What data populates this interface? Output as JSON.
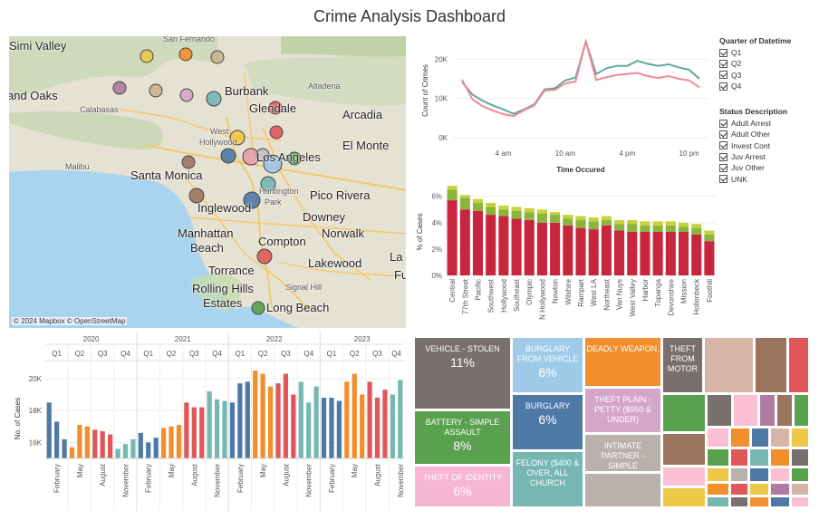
{
  "title": "Crime Analysis Dashboard",
  "map": {
    "credit": "© 2024 Mapbox © OpenStreetMap",
    "places": [
      {
        "name": "Simi Valley",
        "size": "lg"
      },
      {
        "name": "San Fernando",
        "size": "sm"
      },
      {
        "name": "and Oaks",
        "size": "lg"
      },
      {
        "name": "Burbank",
        "size": "lg"
      },
      {
        "name": "Altadena",
        "size": "sm"
      },
      {
        "name": "Calabasas",
        "size": "sm"
      },
      {
        "name": "Glendale",
        "size": "lg"
      },
      {
        "name": "Arcadia",
        "size": "lg"
      },
      {
        "name": "West",
        "size": "sm"
      },
      {
        "name": "Hollywood",
        "size": "sm"
      },
      {
        "name": "El Monte",
        "size": "lg"
      },
      {
        "name": "Los Angeles",
        "size": "lg"
      },
      {
        "name": "Malibu",
        "size": "sm"
      },
      {
        "name": "Santa Monica",
        "size": "lg"
      },
      {
        "name": "Huntington",
        "size": "sm"
      },
      {
        "name": "Park",
        "size": "sm"
      },
      {
        "name": "Pico Rivera",
        "size": "lg"
      },
      {
        "name": "Inglewood",
        "size": "lg"
      },
      {
        "name": "Downey",
        "size": "lg"
      },
      {
        "name": "Manhattan",
        "size": "lg"
      },
      {
        "name": "Beach",
        "size": "lg"
      },
      {
        "name": "Compton",
        "size": "lg"
      },
      {
        "name": "Norwalk",
        "size": "lg"
      },
      {
        "name": "La",
        "size": "lg"
      },
      {
        "name": "Lakewood",
        "size": "lg"
      },
      {
        "name": "Torrance",
        "size": "lg"
      },
      {
        "name": "Fu",
        "size": "lg"
      },
      {
        "name": "Signal Hill",
        "size": "sm"
      },
      {
        "name": "Rolling Hills",
        "size": "lg"
      },
      {
        "name": "Estates",
        "size": "lg"
      },
      {
        "name": "Long Beach",
        "size": "lg"
      }
    ],
    "marker_colors": [
      "#e8a0a8",
      "#d7b4d8",
      "#bfbfbf",
      "#9dc3e6",
      "#4e79a7",
      "#76b7b2",
      "#59a14f",
      "#edc948",
      "#b07aa1",
      "#9c755f",
      "#e15759",
      "#f28e2b",
      "#d4a5c9",
      "#c9b28f"
    ]
  },
  "legend": {
    "quarter_title": "Quarter of Datetime",
    "quarters": [
      "Q1",
      "Q2",
      "Q3",
      "Q4"
    ],
    "status_title": "Status Description",
    "statuses": [
      "Adult Arrest",
      "Adult Other",
      "Invest Cont",
      "Juv Arrest",
      "Juv Other",
      "UNK"
    ]
  },
  "chart_data": [
    {
      "type": "line",
      "xlabel": "Time Occured",
      "ylabel": "Count of Crimes",
      "x": [
        0,
        1,
        2,
        3,
        4,
        5,
        6,
        7,
        8,
        9,
        10,
        11,
        12,
        13,
        14,
        15,
        16,
        17,
        18,
        19,
        20,
        21,
        22,
        23
      ],
      "xticks": [
        {
          "label": "4 am",
          "at": 4
        },
        {
          "label": "10 am",
          "at": 10
        },
        {
          "label": "4 pm",
          "at": 16
        },
        {
          "label": "10 pm",
          "at": 22
        }
      ],
      "yticks": [
        {
          "label": "0K",
          "at": 0
        },
        {
          "label": "10K",
          "at": 10000
        },
        {
          "label": "20K",
          "at": 20000
        }
      ],
      "ylim": [
        0,
        24000
      ],
      "series": [
        {
          "color": "#5fa8a0",
          "values": [
            14200,
            11000,
            9400,
            8200,
            7200,
            6100,
            7200,
            8500,
            12300,
            12600,
            14600,
            15300,
            24500,
            16200,
            17700,
            18300,
            18300,
            19600,
            18800,
            18300,
            18700,
            17900,
            17300,
            15000
          ]
        },
        {
          "color": "#f08a96",
          "values": [
            14800,
            9800,
            8000,
            6900,
            6000,
            5500,
            7000,
            8200,
            12000,
            12200,
            13800,
            14300,
            24500,
            14700,
            15400,
            16000,
            16200,
            16500,
            15700,
            15200,
            15700,
            15000,
            14600,
            12800
          ]
        }
      ]
    },
    {
      "type": "bar",
      "stacked": true,
      "ylabel": "% of Cases",
      "categories": [
        "Central",
        "77th Street",
        "Pacific",
        "Southwest",
        "Hollywood",
        "Southeast",
        "Olympic",
        "N Hollywood",
        "Newton",
        "Wilshire",
        "Rampart",
        "West LA",
        "Northeast",
        "Van Nuys",
        "West Valley",
        "Harbor",
        "Topanga",
        "Devonshire",
        "Mission",
        "Hollenbeck",
        "Foothill"
      ],
      "yticks": [
        {
          "label": "0%",
          "at": 0
        },
        {
          "label": "2%",
          "at": 2
        },
        {
          "label": "4%",
          "at": 4
        },
        {
          "label": "6%",
          "at": 6
        }
      ],
      "ylim": [
        0,
        6.6
      ],
      "series": [
        {
          "color": "#c8253e",
          "values": [
            5.7,
            5.0,
            4.9,
            4.6,
            4.5,
            4.3,
            4.2,
            4.0,
            4.0,
            3.8,
            3.6,
            3.5,
            3.8,
            3.4,
            3.3,
            3.3,
            3.3,
            3.3,
            3.3,
            3.1,
            2.6
          ]
        },
        {
          "color": "#8ab43c",
          "values": [
            0.8,
            0.9,
            0.6,
            0.6,
            0.5,
            0.6,
            0.6,
            0.7,
            0.6,
            0.5,
            0.6,
            0.6,
            0.4,
            0.5,
            0.6,
            0.5,
            0.5,
            0.5,
            0.4,
            0.5,
            0.5
          ]
        },
        {
          "color": "#c6d23a",
          "values": [
            0.3,
            0.2,
            0.3,
            0.3,
            0.3,
            0.3,
            0.3,
            0.3,
            0.2,
            0.3,
            0.3,
            0.3,
            0.3,
            0.3,
            0.3,
            0.3,
            0.3,
            0.3,
            0.3,
            0.3,
            0.3
          ]
        }
      ]
    },
    {
      "type": "bar",
      "ylabel": "No. of Cases",
      "years": [
        "2020",
        "2021",
        "2022",
        "2023"
      ],
      "quarters": [
        "Q1",
        "Q2",
        "Q3",
        "Q4"
      ],
      "quarter_colors": [
        "#4e79a7",
        "#f28e2b",
        "#e15759",
        "#76b7b2"
      ],
      "month_labels": [
        "February",
        "May",
        "August",
        "November"
      ],
      "yticks": [
        {
          "label": "16K",
          "at": 16000
        },
        {
          "label": "18K",
          "at": 18000
        },
        {
          "label": "20K",
          "at": 20000
        }
      ],
      "ylim": [
        15000,
        20900
      ],
      "values": [
        18500,
        17300,
        16200,
        15700,
        17100,
        17000,
        16800,
        16700,
        16500,
        15600,
        15900,
        16200,
        16600,
        16000,
        16300,
        16900,
        17000,
        17100,
        18500,
        18200,
        18200,
        19200,
        18700,
        18600,
        18500,
        19700,
        19800,
        20500,
        20300,
        19500,
        19700,
        20300,
        19000,
        19800,
        18500,
        19500,
        18800,
        18800,
        18600,
        19800,
        20300,
        19000,
        19800,
        18800,
        19300,
        19000,
        19900
      ]
    }
  ],
  "treemap": [
    {
      "label": "VEHICLE - STOLEN",
      "pct": "11%",
      "color": "#79706e"
    },
    {
      "label": "BURGLARY FROM VEHICLE",
      "pct": "6%",
      "color": "#a0cbe8"
    },
    {
      "label": "DEADLY WEAPON,",
      "pct": "",
      "color": "#f28e2b"
    },
    {
      "label": "THEFT FROM MOTOR",
      "pct": "",
      "color": "#79706e"
    },
    {
      "label": "BATTERY - SIMPLE ASSAULT",
      "pct": "8%",
      "color": "#59a14f"
    },
    {
      "label": "BURGLARY",
      "pct": "6%",
      "color": "#4e79a7"
    },
    {
      "label": "THEFT PLAIN - PETTY ($950 & UNDER)",
      "pct": "",
      "color": "#d4a6c8"
    },
    {
      "label": "INTIMATE PARTNER - SIMPLE",
      "pct": "",
      "color": "#bab0ac"
    },
    {
      "label": "THEFT OF IDENTITY",
      "pct": "6%",
      "color": "#f7b6d2"
    },
    {
      "label": "FELONY ($400 & OVER, ALL CHURCH",
      "pct": "",
      "color": "#76b7b2"
    }
  ]
}
